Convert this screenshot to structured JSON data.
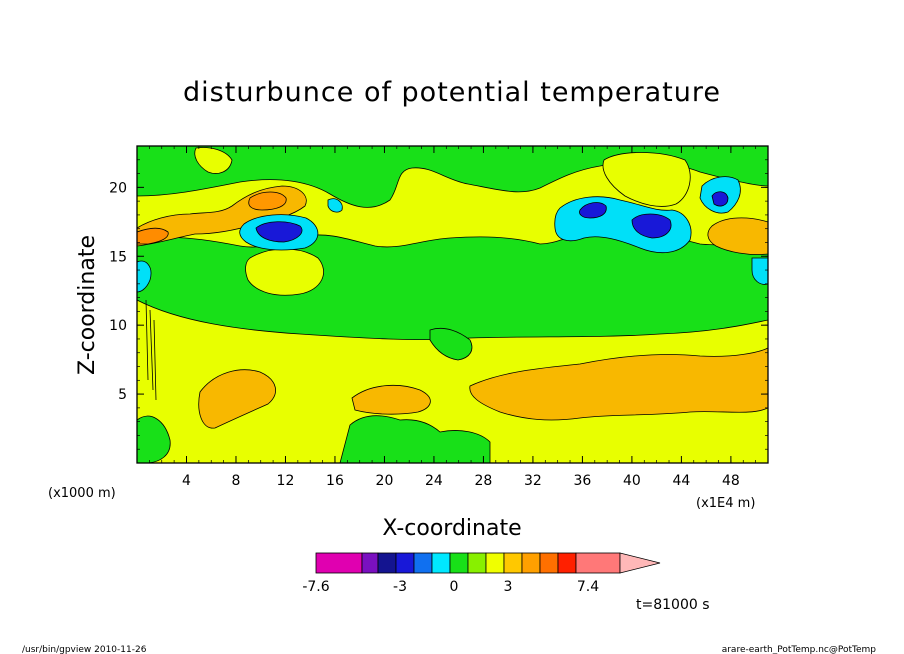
{
  "chart_data": {
    "type": "contour",
    "title": "disturbunce of potential temperature",
    "xlabel": "X-coordinate",
    "ylabel": "Z-coordinate",
    "x_unit_label": "(x1E4 m)",
    "y_unit_label": "(x1000 m)",
    "xlim": [
      0,
      51
    ],
    "ylim": [
      0,
      23
    ],
    "x_ticks": [
      "4",
      "8",
      "12",
      "16",
      "20",
      "24",
      "28",
      "32",
      "36",
      "40",
      "44",
      "48"
    ],
    "y_ticks": [
      "5",
      "10",
      "15",
      "20"
    ],
    "colorbar": {
      "labels": [
        "-7.6",
        "-3",
        "0",
        "3",
        "7.4"
      ],
      "colors": [
        "#e000b0",
        "#7a10c0",
        "#141490",
        "#1818d8",
        "#1070f0",
        "#00e8ff",
        "#18e018",
        "#88f000",
        "#f0ff00",
        "#ffc800",
        "#ffa000",
        "#ff7000",
        "#ff2000",
        "#ff7878",
        "#ffb8b8"
      ]
    },
    "regions": [
      {
        "kind": "background",
        "value": "near 0",
        "color": "#18e018"
      },
      {
        "kind": "lower warm layer",
        "value": "0 to 1.5",
        "color": "#e8ff00"
      },
      {
        "kind": "lower warm cells",
        "value": "1.5 to 3",
        "color": "#f8b800"
      },
      {
        "kind": "upper warm band",
        "value": "0 to 3",
        "color": "#f8b800"
      },
      {
        "kind": "upper cold cells",
        "value": "-3 to -1.5",
        "color": "#00e0f8"
      },
      {
        "kind": "cold cores",
        "value": "below -3",
        "color": "#1818d8"
      }
    ],
    "grid": false,
    "legend_position": "bottom"
  },
  "annotation": {
    "time_label": "t=81000 s",
    "footer_left": "/usr/bin/gpview  2010-11-26",
    "footer_right": "arare-earth_PotTemp.nc@PotTemp"
  }
}
